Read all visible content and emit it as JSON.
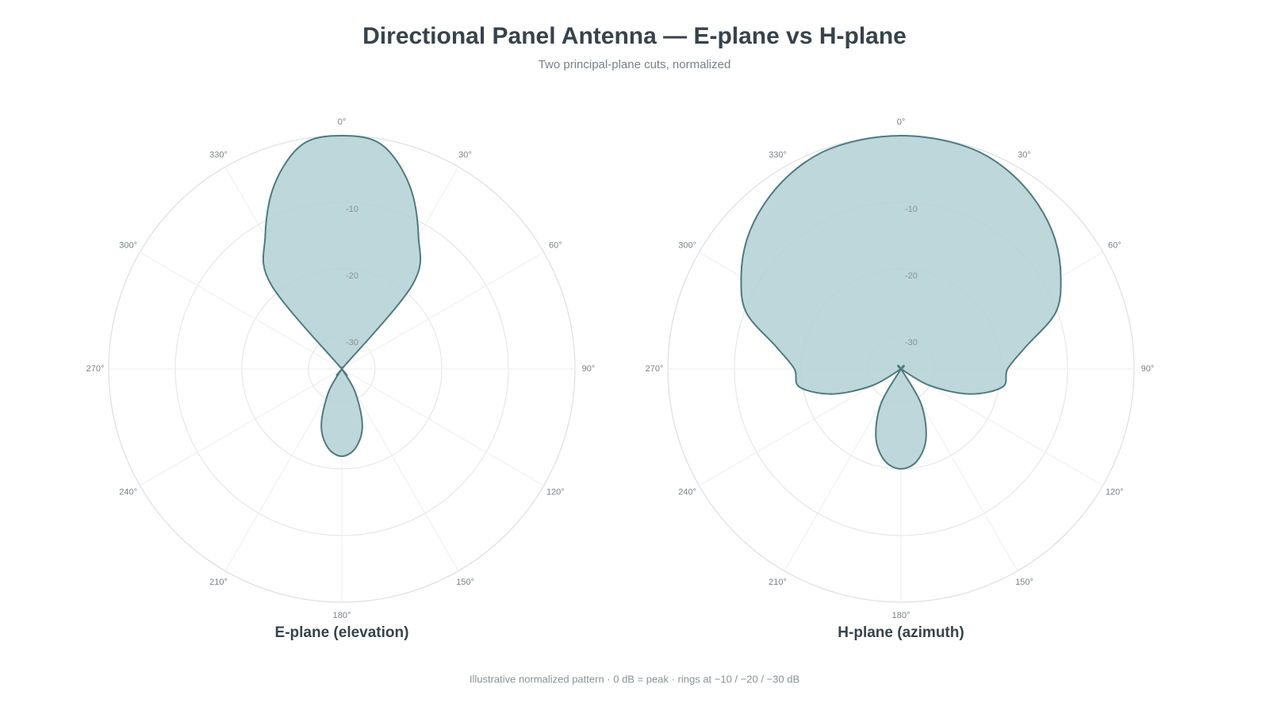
{
  "title": "Directional Panel Antenna — E-plane vs H-plane",
  "subtitle": "Two principal-plane cuts, normalized",
  "footnote": "Illustrative normalized pattern · 0 dB = peak · rings at −10 / −20 / −30 dB",
  "chart_data": [
    {
      "type": "polar",
      "title": "E-plane (elevation)",
      "color": "#4f7a80",
      "fill": "#b3d0d4",
      "theta": [
        0,
        10,
        20,
        30,
        40,
        50,
        60,
        70,
        80,
        90,
        100,
        110,
        120,
        130,
        140,
        150,
        160,
        170,
        180,
        190,
        200,
        210,
        220,
        230,
        240,
        250,
        260,
        270,
        280,
        290,
        300,
        310,
        320,
        330,
        340,
        350
      ],
      "values": [
        0,
        -0.8,
        -5.5,
        -12,
        -18.5,
        -35,
        -35,
        -35,
        -35,
        -35,
        -35,
        -35,
        -35,
        -35,
        -35,
        -31,
        -26,
        -23,
        -21.9,
        -23,
        -26,
        -31,
        -35,
        -35,
        -35,
        -35,
        -35,
        -35,
        -35,
        -35,
        -35,
        -35,
        -18.5,
        -12,
        -5.5,
        -0.8
      ],
      "rlim": [
        -35,
        0
      ],
      "rticks": [
        -30,
        -20,
        -10
      ],
      "thetaticks": [
        {
          "value": 0,
          "label": "0°"
        },
        {
          "value": 30,
          "label": "30°"
        },
        {
          "value": 60,
          "label": "60°"
        },
        {
          "value": 90,
          "label": "90°"
        },
        {
          "value": 120,
          "label": "120°"
        },
        {
          "value": 150,
          "label": "150°"
        },
        {
          "value": 180,
          "label": "180°"
        },
        {
          "value": 210,
          "label": "210°"
        },
        {
          "value": 240,
          "label": "240°"
        },
        {
          "value": 270,
          "label": "270°"
        },
        {
          "value": 300,
          "label": "300°"
        },
        {
          "value": 330,
          "label": "330°"
        }
      ]
    },
    {
      "type": "polar",
      "title": "H-plane (azimuth)",
      "color": "#4f7a80",
      "fill": "#b3d0d4",
      "theta": [
        0,
        10,
        20,
        30,
        40,
        50,
        60,
        70,
        80,
        90,
        100,
        110,
        120,
        130,
        140,
        150,
        160,
        170,
        180,
        190,
        200,
        210,
        220,
        230,
        240,
        250,
        260,
        270,
        280,
        290,
        300,
        310,
        320,
        330,
        340,
        350
      ],
      "values": [
        0,
        -0.1,
        -0.4,
        -1.4,
        -2.9,
        -4.8,
        -7.3,
        -10.3,
        -16,
        -19,
        -19.5,
        -24,
        -30,
        -35,
        -35,
        -29,
        -24,
        -21,
        -20,
        -21,
        -24,
        -29,
        -35,
        -35,
        -30,
        -24,
        -19.5,
        -19,
        -16,
        -10.3,
        -7.3,
        -4.8,
        -2.9,
        -1.4,
        -0.4,
        -0.1
      ],
      "rlim": [
        -35,
        0
      ],
      "rticks": [
        -30,
        -20,
        -10
      ],
      "thetaticks": [
        {
          "value": 0,
          "label": "0°"
        },
        {
          "value": 30,
          "label": "30°"
        },
        {
          "value": 60,
          "label": "60°"
        },
        {
          "value": 90,
          "label": "90°"
        },
        {
          "value": 120,
          "label": "120°"
        },
        {
          "value": 150,
          "label": "150°"
        },
        {
          "value": 180,
          "label": "180°"
        },
        {
          "value": 210,
          "label": "210°"
        },
        {
          "value": 240,
          "label": "240°"
        },
        {
          "value": 270,
          "label": "270°"
        },
        {
          "value": 300,
          "label": "300°"
        },
        {
          "value": 330,
          "label": "330°"
        }
      ]
    }
  ]
}
